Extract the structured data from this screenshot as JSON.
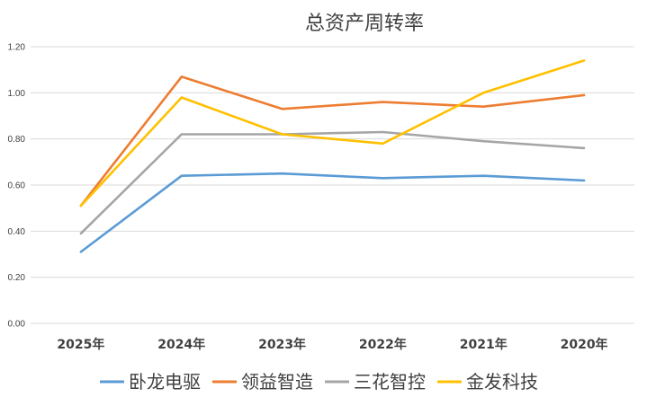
{
  "chart_data": {
    "type": "line",
    "title": "总资产周转率",
    "xlabel": "",
    "ylabel": "",
    "categories": [
      "2025年",
      "2024年",
      "2023年",
      "2022年",
      "2021年",
      "2020年"
    ],
    "ylim": [
      0,
      1.2
    ],
    "yticks": [
      "0.00",
      "0.20",
      "0.40",
      "0.60",
      "0.80",
      "1.00",
      "1.20"
    ],
    "grid": true,
    "legend_position": "bottom",
    "series": [
      {
        "name": "卧龙电驱",
        "color": "#5b9bd5",
        "values": [
          0.31,
          0.64,
          0.65,
          0.63,
          0.64,
          0.62
        ]
      },
      {
        "name": "领益智造",
        "color": "#ed7d31",
        "values": [
          0.51,
          1.07,
          0.93,
          0.96,
          0.94,
          0.99
        ]
      },
      {
        "name": "三花智控",
        "color": "#a5a5a5",
        "values": [
          0.39,
          0.82,
          0.82,
          0.83,
          0.79,
          0.76
        ]
      },
      {
        "name": "金发科技",
        "color": "#ffc000",
        "values": [
          0.51,
          0.98,
          0.82,
          0.78,
          1.0,
          1.14
        ]
      }
    ]
  }
}
